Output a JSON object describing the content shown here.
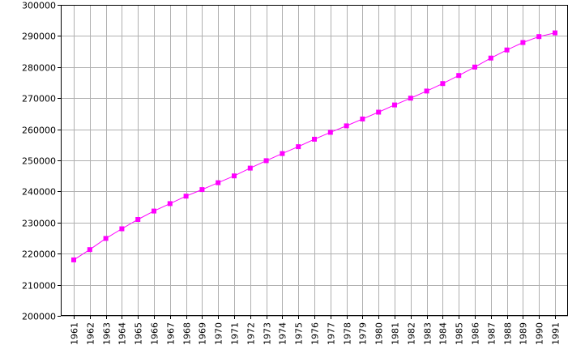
{
  "chart_data": {
    "type": "line",
    "title": "",
    "xlabel": "",
    "ylabel": "",
    "x": [
      1961,
      1962,
      1963,
      1964,
      1965,
      1966,
      1967,
      1968,
      1969,
      1970,
      1971,
      1972,
      1973,
      1974,
      1975,
      1976,
      1977,
      1978,
      1979,
      1980,
      1981,
      1982,
      1983,
      1984,
      1985,
      1986,
      1987,
      1988,
      1989,
      1990,
      1991
    ],
    "x_tick_labels": [
      "1961",
      "1962",
      "1963",
      "1964",
      "1965",
      "1966",
      "1967",
      "1968",
      "1969",
      "1970",
      "1971",
      "1972",
      "1973",
      "1974",
      "1975",
      "1976",
      "1977",
      "1978",
      "1979",
      "1980",
      "1981",
      "1982",
      "1983",
      "1984",
      "1985",
      "1986",
      "1987",
      "1988",
      "1989",
      "1990",
      "1991"
    ],
    "series": [
      {
        "values": [
          218000,
          221300,
          224900,
          228000,
          231000,
          233700,
          236100,
          238500,
          240600,
          242800,
          245000,
          247500,
          249900,
          252200,
          254400,
          256800,
          259000,
          261100,
          263300,
          265500,
          267800,
          270000,
          272300,
          274700,
          277300,
          280000,
          282900,
          285500,
          287900,
          289800,
          291000
        ],
        "color": "#ff00ff",
        "marker": "square"
      }
    ],
    "ylim": [
      200000,
      300000
    ],
    "y_ticks": [
      200000,
      210000,
      220000,
      230000,
      240000,
      250000,
      260000,
      270000,
      280000,
      290000,
      300000
    ],
    "y_tick_labels": [
      "200000",
      "210000",
      "220000",
      "230000",
      "240000",
      "250000",
      "260000",
      "270000",
      "280000",
      "290000",
      "300000"
    ],
    "grid": true,
    "colors": {
      "grid": "#b0b0b0",
      "axis": "#000000",
      "background": "#ffffff"
    }
  }
}
